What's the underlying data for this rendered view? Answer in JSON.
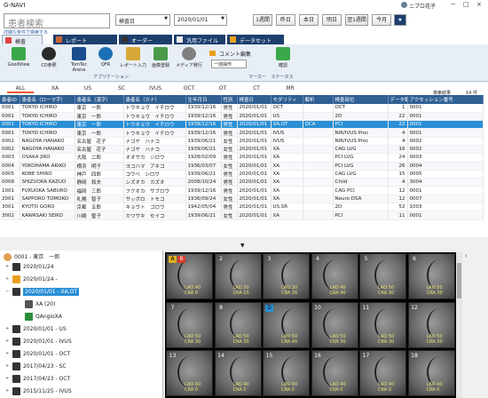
{
  "app": {
    "title": "G-NAVI",
    "user": "ニプロ花子",
    "controls": [
      "−",
      "□",
      "×"
    ]
  },
  "search": {
    "placeholder": "患者検索",
    "advanced_link": "詳細な条件で検索する",
    "date_field_select": "検査日",
    "date_value": "2020/01/01",
    "buttons": [
      "1週間",
      "昨日",
      "本日",
      "明日",
      "翌1週間",
      "今月"
    ],
    "star": "★"
  },
  "tabs": [
    {
      "label": "検査",
      "icon": "exam-icon",
      "active": true
    },
    {
      "label": "レポート",
      "icon": "report-icon"
    },
    {
      "label": "オーダー",
      "icon": "order-icon"
    },
    {
      "label": "汎用ファイル",
      "icon": "file-icon"
    },
    {
      "label": "データセット",
      "icon": "dataset-icon"
    }
  ],
  "ribbon": {
    "apps": [
      {
        "label": "GoodView",
        "color": "#3aa84a"
      },
      {
        "label": "CD参照",
        "color": "#2a2a2a"
      },
      {
        "label": "TomTec Arena",
        "color": "#1b4d8f"
      },
      {
        "label": "QFR",
        "color": "#1b6fb5"
      },
      {
        "label": "レポート入力",
        "color": "#d6a838"
      },
      {
        "label": "画像登録",
        "color": "#4a9a4a"
      },
      {
        "label": "メディア発行",
        "color": "#808080"
      }
    ],
    "apps_group": "アプリケーション",
    "marker_comment": "コメント編集",
    "marker_select": "一括操作",
    "marker_group": "マーカー",
    "status_label": "確認",
    "status_group": "ステータス"
  },
  "filters": [
    "ALL",
    "XA",
    "US",
    "SC",
    "IVUS",
    "OCT",
    "OT",
    "CT",
    "MR"
  ],
  "results": {
    "label": "検索結果",
    "count": "14 件"
  },
  "table": {
    "columns": [
      "患者ID",
      "患者名（ローマ字）",
      "患者名（漢字）",
      "患者名（カナ）",
      "生年月日",
      "性別",
      "検査日",
      "モダリティ",
      "解析",
      "検査部位",
      "データ数",
      "アクセッション番号"
    ],
    "rows": [
      [
        "0001",
        "TOKYO ICHIRO",
        "東京　一郎",
        "トウキョウ　イチロウ",
        "1939/12/16",
        "男性",
        "2020/01/01",
        "OCT",
        "",
        "OCT",
        "1",
        "0001"
      ],
      [
        "0001",
        "TOKYO ICHIRO",
        "東京　一郎",
        "トウキョウ　イチロウ",
        "1939/12/16",
        "男性",
        "2020/01/01",
        "US",
        "",
        "2D",
        "22",
        "0001"
      ],
      [
        "0001",
        "TOKYO ICHIRO",
        "東京　一郎",
        "トウキョウ　イチロウ",
        "1939/12/16",
        "男性",
        "2020/01/01",
        "XA,OT",
        "QCA",
        "PCI",
        "22",
        "0001"
      ],
      [
        "0001",
        "TOKYO ICHIRO",
        "東京　一郎",
        "トウキョウ　イチロウ",
        "1939/12/16",
        "男性",
        "2020/01/01",
        "IVUS",
        "",
        "NIR/IVUS Proc",
        "4",
        "0001"
      ],
      [
        "0002",
        "NAGOYA HANAKO",
        "名古屋　花子",
        "ナゴヤ　ハナコ",
        "1939/06/21",
        "女性",
        "2020/01/01",
        "IVUS",
        "",
        "NIR/IVUS Proc",
        "4",
        "0002"
      ],
      [
        "0002",
        "NAGOYA HANAKO",
        "名古屋　花子",
        "ナゴヤ　ハナコ",
        "1939/06/21",
        "女性",
        "2020/01/01",
        "XA",
        "",
        "CAG LVG",
        "16",
        "0002"
      ],
      [
        "0003",
        "OSAKA JIRO",
        "大阪　二郎",
        "オオサカ　ジロウ",
        "1928/02/09",
        "男性",
        "2020/01/01",
        "XA",
        "",
        "PCI LVG",
        "24",
        "0003"
      ],
      [
        "0004",
        "YOKOHAMA AKIKO",
        "横浜　明子",
        "ヨコハマ　アキコ",
        "1936/03/07",
        "女性",
        "2020/01/01",
        "XA",
        "",
        "PCI LVG",
        "26",
        "0004"
      ],
      [
        "0005",
        "KOBE SHIRO",
        "神戸　四郎",
        "コウベ　シロウ",
        "1939/06/21",
        "男性",
        "2020/01/01",
        "XA",
        "",
        "CAG LVG",
        "15",
        "0005"
      ],
      [
        "0008",
        "SHIZUOKA KAZUO",
        "静岡　和夫",
        "シズオカ　カズオ",
        "2008/10/24",
        "男性",
        "2020/01/01",
        "XA",
        "",
        "Child",
        "4",
        "3004"
      ],
      [
        "1001",
        "FUKUOKA SABURO",
        "福岡　三郎",
        "フクオカ　サブロウ",
        "1939/12/16",
        "男性",
        "2020/01/01",
        "XA",
        "",
        "CAG PCI",
        "12",
        "0001"
      ],
      [
        "2001",
        "SAPPORO TOMOKO",
        "札幌　智子",
        "サッポロ　トモコ",
        "1936/09/24",
        "女性",
        "2020/01/01",
        "XA",
        "",
        "Neuro DSA",
        "12",
        "0007"
      ],
      [
        "3001",
        "KYOTO GORO",
        "京都　五郎",
        "キョウト　ゴロウ",
        "1942/05/04",
        "男性",
        "2020/01/01",
        "US,SR",
        "",
        "2D",
        "52",
        "1003"
      ],
      [
        "3002",
        "KAWASAKI SEIKO",
        "川崎　聖子",
        "カワサキ　セイコ",
        "1939/06/21",
        "女性",
        "2020/01/01",
        "XA",
        "",
        "PCI",
        "11",
        "0001"
      ]
    ]
  },
  "tree": {
    "root": "0001 - 東京　一郎",
    "nodes": [
      {
        "label": "2020/01/24",
        "depth": 1,
        "toggle": "+"
      },
      {
        "label": "2020/01/24 -",
        "depth": 1,
        "toggle": "+"
      },
      {
        "label": "2020/01/01 - XA,OT",
        "depth": 1,
        "toggle": "−",
        "selected": true
      },
      {
        "label": "XA (20)",
        "depth": 2,
        "toggle": ""
      },
      {
        "label": "QAngioXA",
        "depth": 2,
        "toggle": ""
      },
      {
        "label": "2020/01/01 - US",
        "depth": 1,
        "toggle": "+"
      },
      {
        "label": "2020/01/01 - IVUS",
        "depth": 1,
        "toggle": "+"
      },
      {
        "label": "2020/01/01 - OCT",
        "depth": 1,
        "toggle": "+"
      },
      {
        "label": "2017/04/23 - SC",
        "depth": 1,
        "toggle": "+"
      },
      {
        "label": "2017/04/23 - OCT",
        "depth": 1,
        "toggle": "+"
      },
      {
        "label": "2015/11/25 - IVUS",
        "depth": 1,
        "toggle": "+"
      }
    ]
  },
  "thumbnails": [
    {
      "n": "A",
      "badge": "B",
      "badge_color": "#e0b020",
      "cap": "LAO 40\nCRA 0"
    },
    {
      "n": "2",
      "badge": "",
      "cap": "LAO 50\nCRA 10"
    },
    {
      "n": "3",
      "badge": "",
      "cap": "LAO 30\nCRA 30"
    },
    {
      "n": "4",
      "badge": "",
      "cap": "LAO 40\nCRA 40"
    },
    {
      "n": "5",
      "badge": "",
      "cap": "LAO 50\nCRA 30"
    },
    {
      "n": "6",
      "badge": "",
      "cap": "LAO 50\nCRA 30"
    },
    {
      "n": "7",
      "badge": "",
      "cap": "LAO 50\nCRA 30"
    },
    {
      "n": "8",
      "badge": "",
      "cap": "LAO 50\nCRA 30"
    },
    {
      "n": "D",
      "badge": "D",
      "badge_color": "#2a8fd6",
      "cap": "LAO 50\nCRA 40"
    },
    {
      "n": "10",
      "badge": "",
      "cap": "LAO 50\nCRA 30"
    },
    {
      "n": "11",
      "badge": "",
      "cap": "LAO 50\nCRA 30"
    },
    {
      "n": "12",
      "badge": "",
      "cap": "LAO 50\nCRA 30"
    },
    {
      "n": "13",
      "badge": "",
      "cap": "LAO 40\nCRA 0"
    },
    {
      "n": "14",
      "badge": "",
      "cap": "LAO 40\nCRA 0"
    },
    {
      "n": "15",
      "badge": "",
      "cap": "LAO 40\nCRA 0"
    },
    {
      "n": "16",
      "badge": "",
      "cap": "LAO 40\nCRA 0"
    },
    {
      "n": "17",
      "badge": "",
      "cap": "LAO 40\nCRA 0"
    },
    {
      "n": "18",
      "badge": "",
      "cap": "LAO 40\nCRA 0"
    }
  ],
  "colors": {
    "header": "#2f5f93",
    "selection": "#2a8fd6",
    "tab": "#1d3f6e",
    "accent": "#e65a2e"
  }
}
